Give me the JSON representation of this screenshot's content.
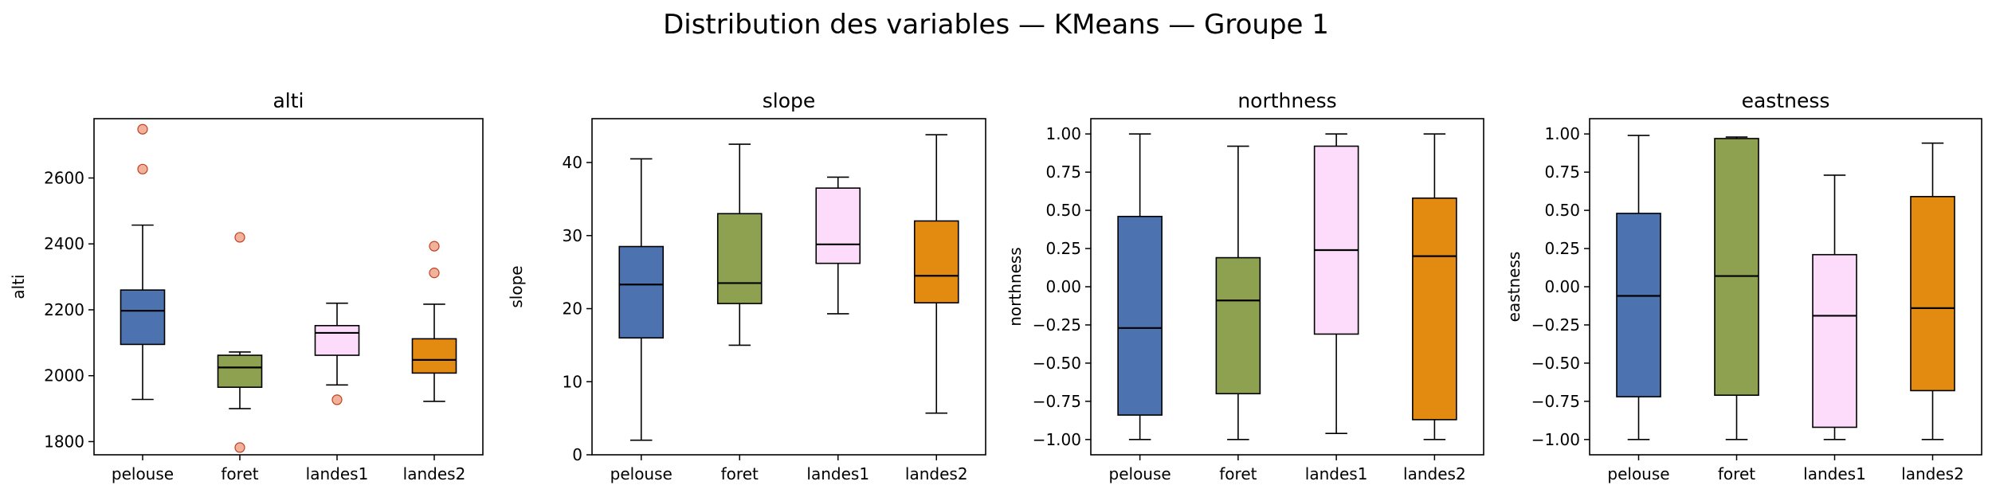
{
  "figure": {
    "suptitle": "Distribution des variables — KMeans — Groupe 1"
  },
  "chart_data": [
    {
      "type": "boxplot",
      "title": "alti",
      "ylabel": "alti",
      "xlabel": "",
      "categories": [
        "pelouse",
        "foret",
        "landes1",
        "landes2"
      ],
      "ylim": [
        1760,
        2780
      ],
      "yticks": [
        1800,
        2000,
        2200,
        2400,
        2600
      ],
      "ytick_labels": [
        "1800",
        "2000",
        "2200",
        "2400",
        "2600"
      ],
      "boxes": [
        {
          "whislo": 1928,
          "q1": 2095,
          "med": 2197,
          "q3": 2260,
          "whishi": 2457,
          "fliers": [
            2627,
            2748
          ]
        },
        {
          "whislo": 1900,
          "q1": 1965,
          "med": 2025,
          "q3": 2062,
          "whishi": 2072,
          "fliers": [
            1782,
            2420
          ]
        },
        {
          "whislo": 1972,
          "q1": 2062,
          "med": 2130,
          "q3": 2152,
          "whishi": 2220,
          "fliers": [
            1927
          ]
        },
        {
          "whislo": 1922,
          "q1": 2008,
          "med": 2048,
          "q3": 2112,
          "whishi": 2217,
          "fliers": [
            2312,
            2393
          ]
        }
      ]
    },
    {
      "type": "boxplot",
      "title": "slope",
      "ylabel": "slope",
      "xlabel": "",
      "categories": [
        "pelouse",
        "foret",
        "landes1",
        "landes2"
      ],
      "ylim": [
        0,
        46
      ],
      "yticks": [
        0,
        10,
        20,
        30,
        40
      ],
      "ytick_labels": [
        "0",
        "10",
        "20",
        "30",
        "40"
      ],
      "boxes": [
        {
          "whislo": 2.0,
          "q1": 16.0,
          "med": 23.3,
          "q3": 28.5,
          "whishi": 40.5,
          "fliers": []
        },
        {
          "whislo": 15.0,
          "q1": 20.7,
          "med": 23.5,
          "q3": 33.0,
          "whishi": 42.5,
          "fliers": []
        },
        {
          "whislo": 19.3,
          "q1": 26.2,
          "med": 28.8,
          "q3": 36.5,
          "whishi": 38.0,
          "fliers": []
        },
        {
          "whislo": 5.7,
          "q1": 20.8,
          "med": 24.5,
          "q3": 32.0,
          "whishi": 43.8,
          "fliers": []
        }
      ]
    },
    {
      "type": "boxplot",
      "title": "northness",
      "ylabel": "northness",
      "xlabel": "",
      "categories": [
        "pelouse",
        "foret",
        "landes1",
        "landes2"
      ],
      "ylim": [
        -1.1,
        1.1
      ],
      "yticks": [
        -1.0,
        -0.75,
        -0.5,
        -0.25,
        0.0,
        0.25,
        0.5,
        0.75,
        1.0
      ],
      "ytick_labels": [
        "−1.00",
        "−0.75",
        "−0.50",
        "−0.25",
        "0.00",
        "0.25",
        "0.50",
        "0.75",
        "1.00"
      ],
      "boxes": [
        {
          "whislo": -1.0,
          "q1": -0.84,
          "med": -0.27,
          "q3": 0.46,
          "whishi": 1.0,
          "fliers": []
        },
        {
          "whislo": -1.0,
          "q1": -0.7,
          "med": -0.09,
          "q3": 0.19,
          "whishi": 0.92,
          "fliers": []
        },
        {
          "whislo": -0.96,
          "q1": -0.31,
          "med": 0.24,
          "q3": 0.92,
          "whishi": 1.0,
          "fliers": []
        },
        {
          "whislo": -1.0,
          "q1": -0.87,
          "med": 0.2,
          "q3": 0.58,
          "whishi": 1.0,
          "fliers": []
        }
      ]
    },
    {
      "type": "boxplot",
      "title": "eastness",
      "ylabel": "eastness",
      "xlabel": "",
      "categories": [
        "pelouse",
        "foret",
        "landes1",
        "landes2"
      ],
      "ylim": [
        -1.1,
        1.1
      ],
      "yticks": [
        -1.0,
        -0.75,
        -0.5,
        -0.25,
        0.0,
        0.25,
        0.5,
        0.75,
        1.0
      ],
      "ytick_labels": [
        "−1.00",
        "−0.75",
        "−0.50",
        "−0.25",
        "0.00",
        "0.25",
        "0.50",
        "0.75",
        "1.00"
      ],
      "boxes": [
        {
          "whislo": -1.0,
          "q1": -0.72,
          "med": -0.06,
          "q3": 0.48,
          "whishi": 0.99,
          "fliers": []
        },
        {
          "whislo": -1.0,
          "q1": -0.71,
          "med": 0.07,
          "q3": 0.97,
          "whishi": 0.98,
          "fliers": []
        },
        {
          "whislo": -1.0,
          "q1": -0.92,
          "med": -0.19,
          "q3": 0.21,
          "whishi": 0.73,
          "fliers": []
        },
        {
          "whislo": -1.0,
          "q1": -0.68,
          "med": -0.14,
          "q3": 0.59,
          "whishi": 0.94,
          "fliers": []
        }
      ]
    }
  ],
  "styles": {
    "box_colors": [
      "#4c72b0",
      "#8da150",
      "#fddcfb",
      "#e38a10"
    ],
    "flier_fill": "#f0a890",
    "flier_edge": "#c04020",
    "line_color": "#000000"
  }
}
